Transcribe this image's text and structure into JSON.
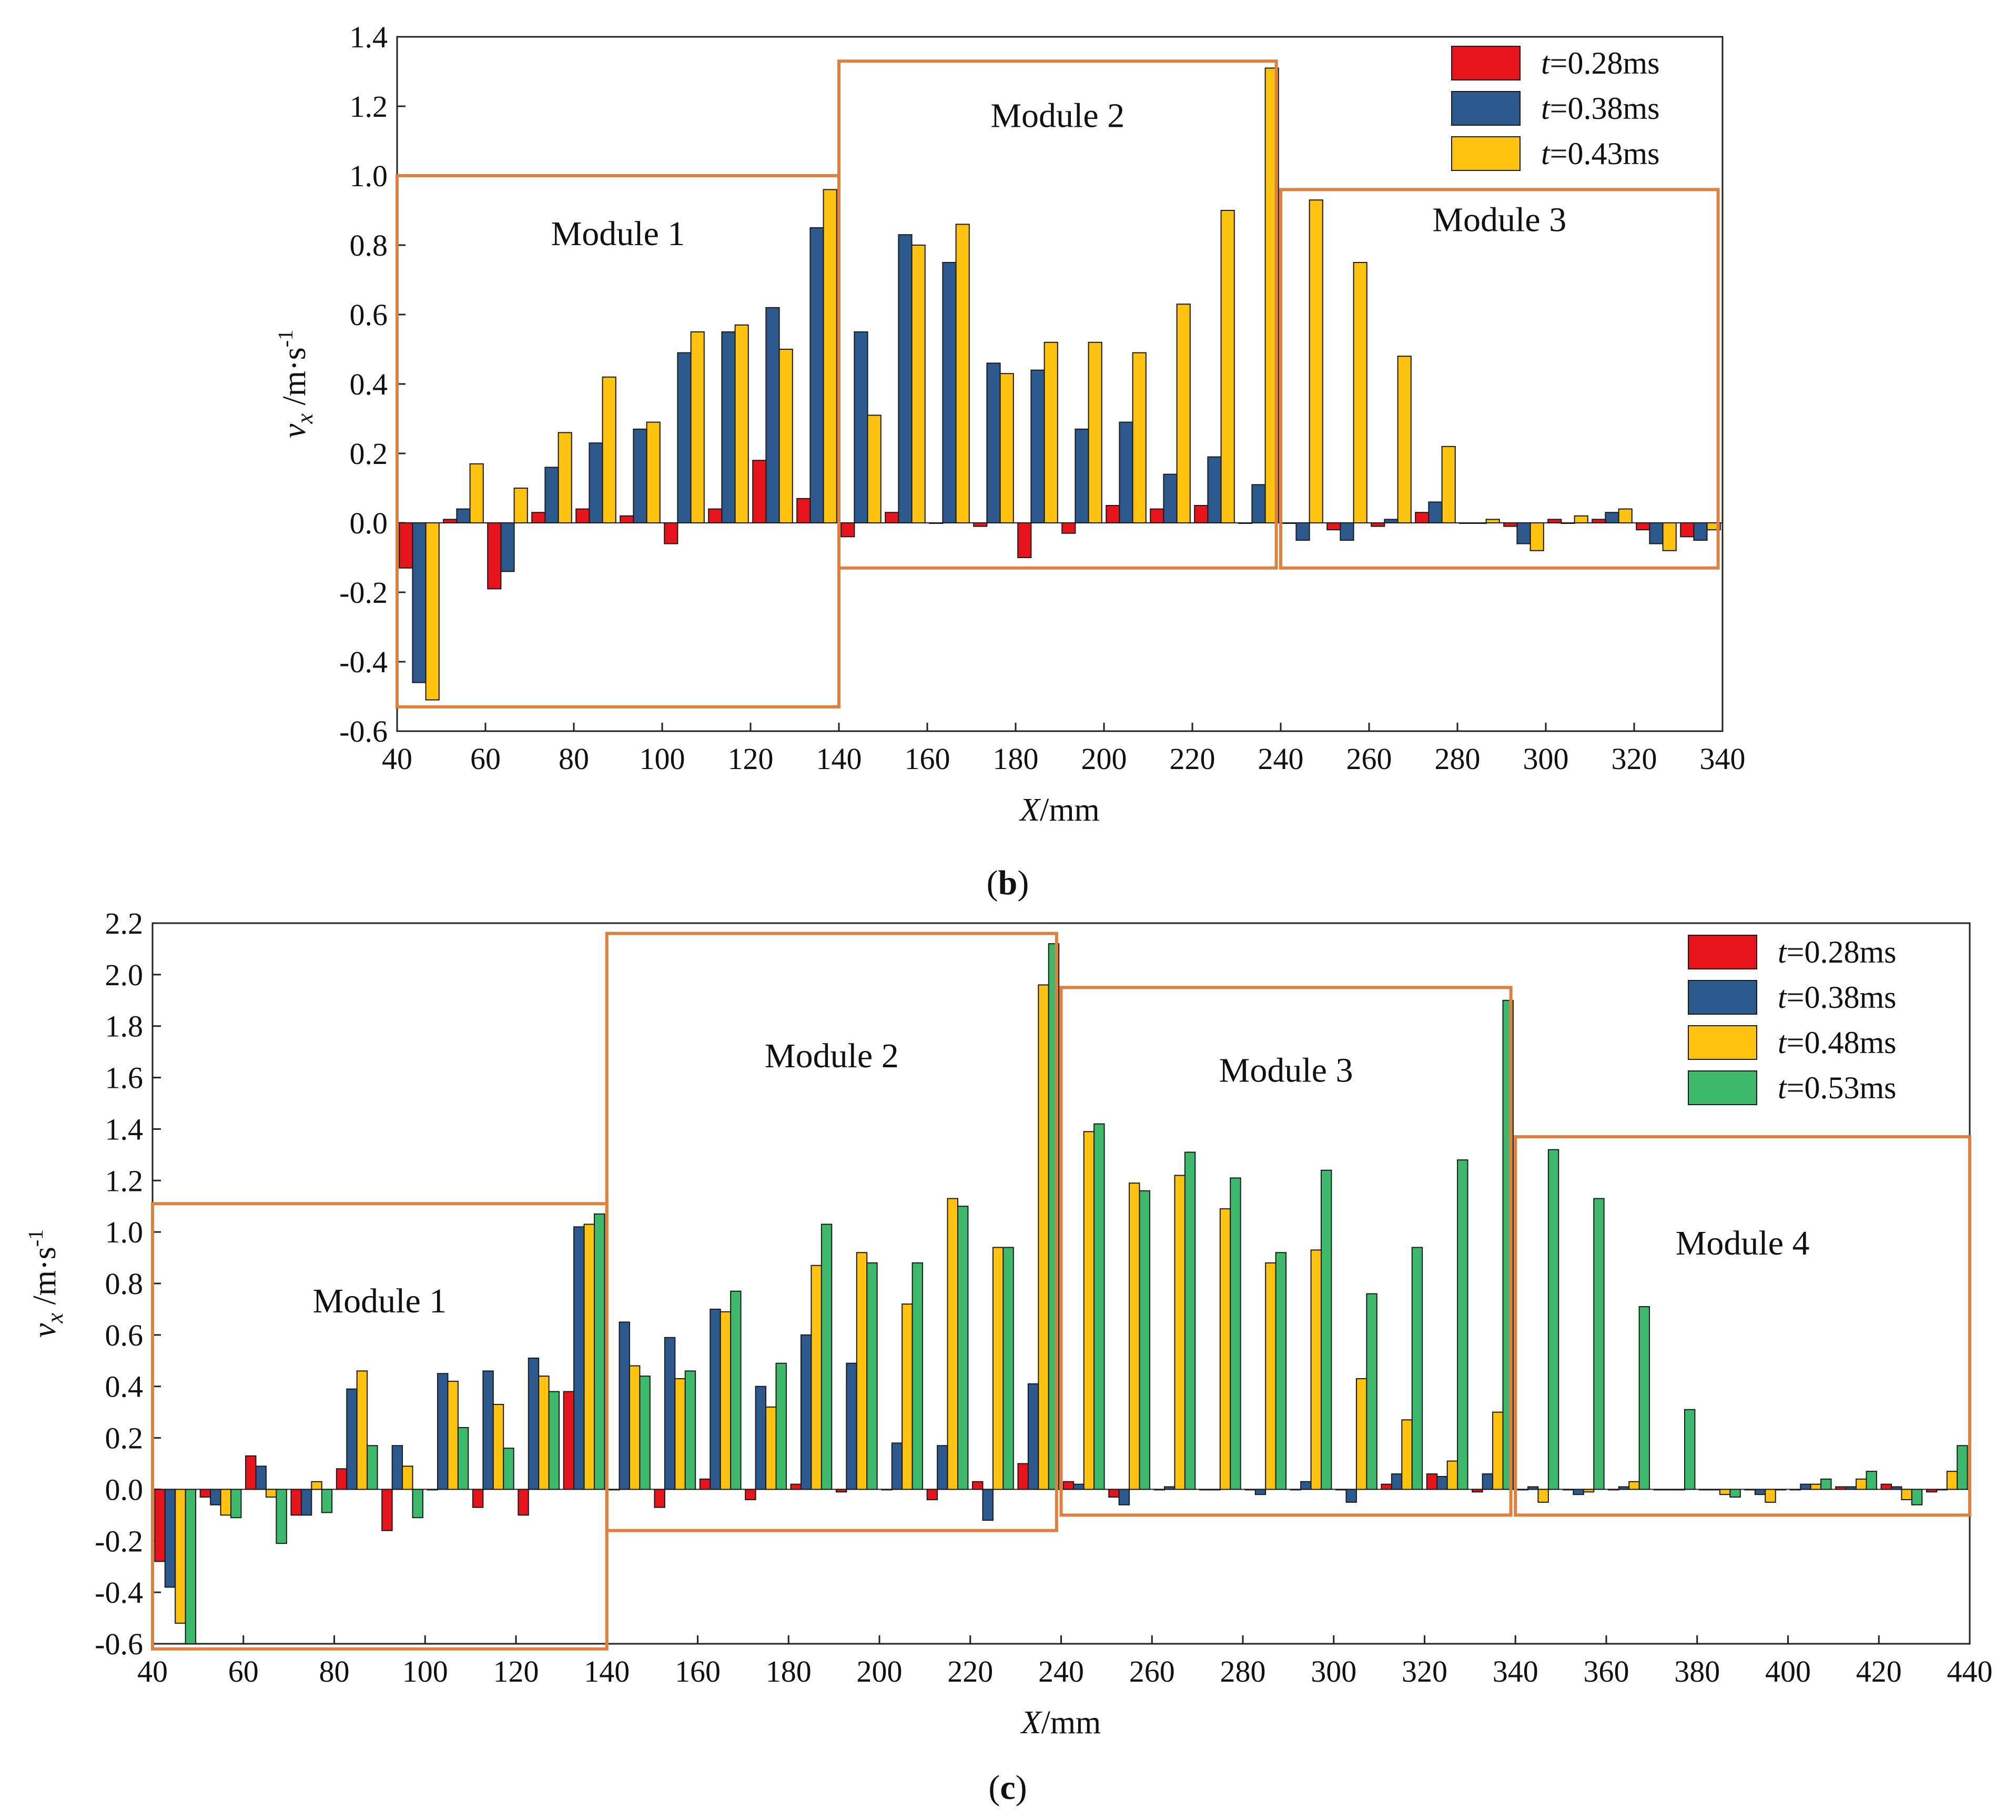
{
  "chart_data": [
    {
      "id": "b",
      "type": "bar",
      "caption": "(b)",
      "title": "",
      "xlabel": "X/mm",
      "ylabel": "vx /m·s-1",
      "xlim": [
        40,
        340
      ],
      "ylim": [
        -0.6,
        1.4
      ],
      "xticks": [
        "40",
        "60",
        "80",
        "100",
        "120",
        "140",
        "160",
        "180",
        "200",
        "220",
        "240",
        "260",
        "280",
        "300",
        "320",
        "340"
      ],
      "yticks": [
        "-0.6",
        "-0.4",
        "-0.2",
        "0.0",
        "0.2",
        "0.4",
        "0.6",
        "0.8",
        "1.0",
        "1.2",
        "1.4"
      ],
      "categories": [
        45,
        55,
        65,
        75,
        85,
        95,
        105,
        115,
        125,
        135,
        145,
        155,
        165,
        175,
        185,
        195,
        205,
        215,
        225,
        235,
        245,
        255,
        265,
        275,
        285,
        295,
        305,
        315,
        325,
        335
      ],
      "series": [
        {
          "name": "t=0.28ms",
          "color": "#e8141c",
          "values": [
            -0.13,
            0.01,
            -0.19,
            0.03,
            0.04,
            0.02,
            -0.06,
            0.04,
            0.18,
            0.07,
            -0.04,
            0.03,
            0.0,
            -0.01,
            -0.1,
            -0.03,
            0.05,
            0.04,
            0.05,
            0.0,
            0.0,
            -0.02,
            -0.01,
            0.03,
            0.0,
            -0.01,
            0.01,
            0.01,
            -0.02,
            -0.04
          ]
        },
        {
          "name": "t=0.38ms",
          "color": "#2d5a8e",
          "values": [
            -0.46,
            0.04,
            -0.14,
            0.16,
            0.23,
            0.27,
            0.49,
            0.55,
            0.62,
            0.85,
            0.55,
            0.83,
            0.75,
            0.46,
            0.44,
            0.27,
            0.29,
            0.14,
            0.19,
            0.11,
            -0.05,
            -0.05,
            0.01,
            0.06,
            0.0,
            -0.06,
            0.0,
            0.03,
            -0.06,
            -0.05
          ]
        },
        {
          "name": "t=0.43ms",
          "color": "#ffc20e",
          "values": [
            -0.51,
            0.17,
            0.1,
            0.26,
            0.42,
            0.29,
            0.55,
            0.57,
            0.5,
            0.96,
            0.31,
            0.8,
            0.86,
            0.43,
            0.52,
            0.52,
            0.49,
            0.63,
            0.9,
            1.31,
            0.93,
            0.75,
            0.48,
            0.22,
            0.01,
            -0.08,
            0.02,
            0.04,
            -0.08,
            -0.02
          ]
        }
      ],
      "modules": [
        {
          "label": "Module 1",
          "x0": 40,
          "x1": 140,
          "y0": -0.53,
          "y1": 1.0
        },
        {
          "label": "Module 2",
          "x0": 140,
          "x1": 239,
          "y0": -0.13,
          "y1": 1.33
        },
        {
          "label": "Module 3",
          "x0": 240,
          "x1": 339,
          "y0": -0.13,
          "y1": 0.96
        }
      ],
      "legend": {
        "position": "top-right"
      }
    },
    {
      "id": "c",
      "type": "bar",
      "caption": "(c)",
      "title": "",
      "xlabel": "X/mm",
      "ylabel": "vx /m·s-1",
      "xlim": [
        40,
        440
      ],
      "ylim": [
        -0.6,
        2.2
      ],
      "xticks": [
        "40",
        "60",
        "80",
        "100",
        "120",
        "140",
        "160",
        "180",
        "200",
        "220",
        "240",
        "260",
        "280",
        "300",
        "320",
        "340",
        "360",
        "380",
        "400",
        "420",
        "440"
      ],
      "yticks": [
        "-0.6",
        "-0.4",
        "-0.2",
        "0.0",
        "0.2",
        "0.4",
        "0.6",
        "0.8",
        "1.0",
        "1.2",
        "1.4",
        "1.6",
        "1.8",
        "2.0",
        "2.2"
      ],
      "categories": [
        45,
        55,
        65,
        75,
        85,
        95,
        105,
        115,
        125,
        135,
        145,
        155,
        165,
        175,
        185,
        195,
        205,
        215,
        225,
        235,
        245,
        255,
        265,
        275,
        285,
        295,
        305,
        315,
        325,
        335,
        345,
        355,
        365,
        375,
        385,
        395,
        405,
        415,
        425,
        435
      ],
      "series": [
        {
          "name": "t=0.28ms",
          "color": "#e8141c",
          "values": [
            -0.28,
            -0.03,
            0.13,
            -0.1,
            0.08,
            -0.16,
            0.0,
            -0.07,
            -0.1,
            0.38,
            0.0,
            -0.07,
            0.04,
            -0.04,
            0.02,
            -0.01,
            0.0,
            -0.04,
            0.03,
            0.1,
            0.03,
            -0.03,
            0.0,
            0.0,
            0.0,
            0.0,
            0.0,
            0.02,
            0.06,
            -0.01,
            0.0,
            0.0,
            0.0,
            0.0,
            0.0,
            0.0,
            0.0,
            0.01,
            0.02,
            -0.01
          ]
        },
        {
          "name": "t=0.38ms",
          "color": "#2d5a8e",
          "values": [
            -0.38,
            -0.06,
            0.09,
            -0.1,
            0.39,
            0.17,
            0.45,
            0.46,
            0.51,
            1.02,
            0.65,
            0.59,
            0.7,
            0.4,
            0.6,
            0.49,
            0.18,
            0.17,
            -0.12,
            0.41,
            0.02,
            -0.06,
            0.01,
            0.0,
            -0.02,
            0.03,
            -0.05,
            0.06,
            0.05,
            0.06,
            0.01,
            -0.02,
            0.01,
            0.0,
            0.0,
            -0.02,
            0.02,
            0.01,
            0.01,
            0.0
          ]
        },
        {
          "name": "t=0.48ms",
          "color": "#ffc20e",
          "values": [
            -0.52,
            -0.1,
            -0.03,
            0.03,
            0.46,
            0.09,
            0.42,
            0.33,
            0.44,
            1.03,
            0.48,
            0.43,
            0.69,
            0.32,
            0.87,
            0.92,
            0.72,
            1.13,
            0.94,
            1.96,
            1.39,
            1.19,
            1.22,
            1.09,
            0.88,
            0.93,
            0.43,
            0.27,
            0.11,
            0.3,
            -0.05,
            -0.01,
            0.03,
            0.0,
            -0.02,
            -0.05,
            0.02,
            0.04,
            -0.04,
            0.07
          ]
        },
        {
          "name": "t=0.53ms",
          "color": "#3cb96a",
          "values": [
            -0.6,
            -0.11,
            -0.21,
            -0.09,
            0.17,
            -0.11,
            0.24,
            0.16,
            0.38,
            1.07,
            0.44,
            0.46,
            0.77,
            0.49,
            1.03,
            0.88,
            0.88,
            1.1,
            0.94,
            2.12,
            1.42,
            1.16,
            1.31,
            1.21,
            0.92,
            1.24,
            0.76,
            0.94,
            1.28,
            1.9,
            1.32,
            1.13,
            0.71,
            0.31,
            -0.03,
            0.0,
            0.04,
            0.07,
            -0.06,
            0.17
          ]
        }
      ],
      "modules": [
        {
          "label": "Module 1",
          "x0": 40,
          "x1": 140,
          "y0": -0.62,
          "y1": 1.11
        },
        {
          "label": "Module 2",
          "x0": 140,
          "x1": 239,
          "y0": -0.16,
          "y1": 2.16
        },
        {
          "label": "Module 3",
          "x0": 240,
          "x1": 339,
          "y0": -0.1,
          "y1": 1.95
        },
        {
          "label": "Module 4",
          "x0": 340,
          "x1": 440,
          "y0": -0.1,
          "y1": 1.37
        }
      ],
      "legend": {
        "position": "top-right"
      }
    }
  ]
}
